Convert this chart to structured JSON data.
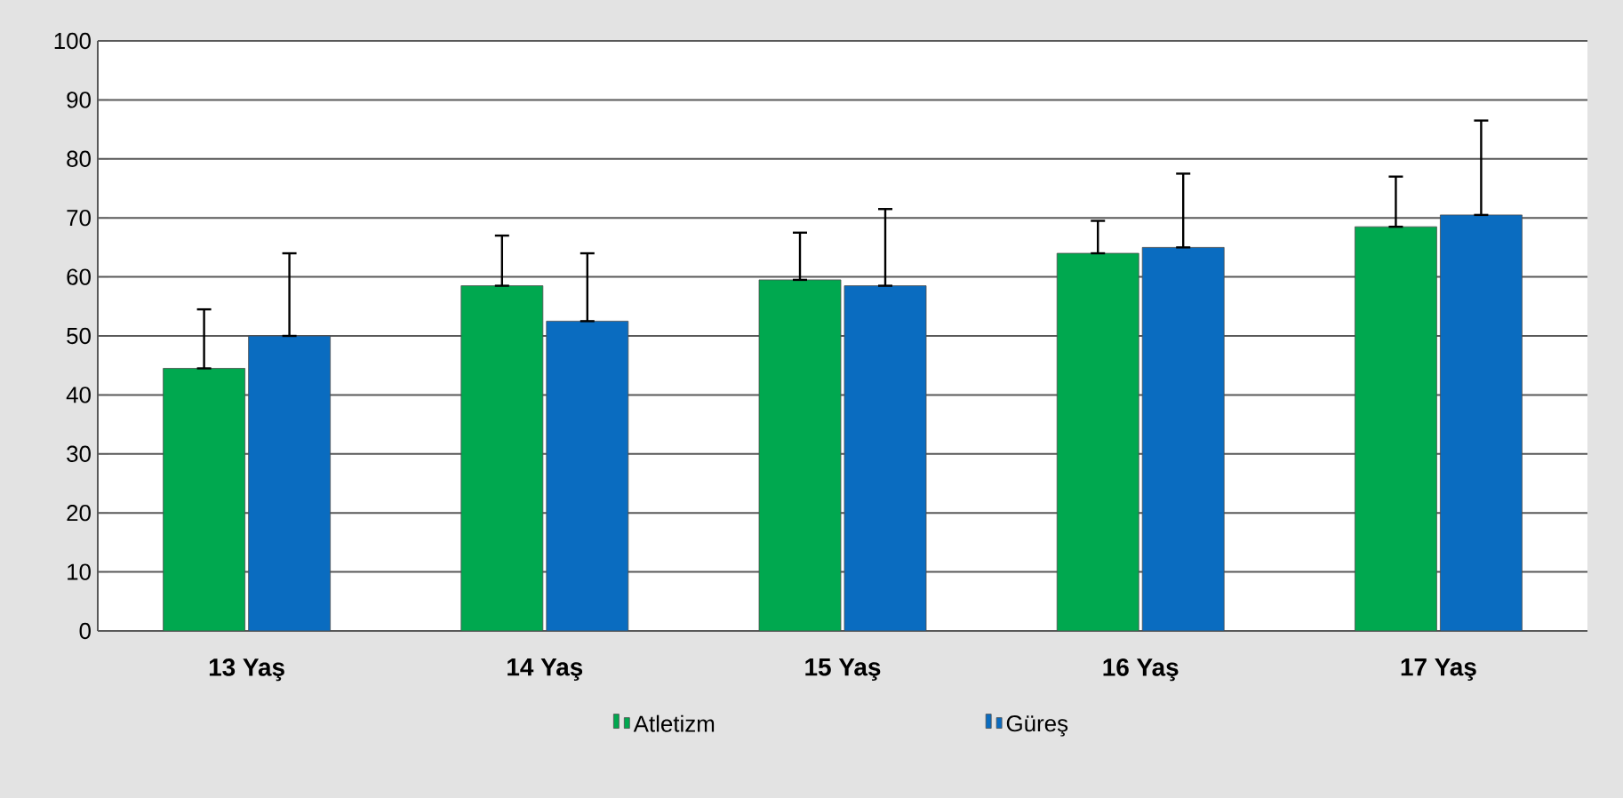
{
  "chart_data": {
    "type": "bar",
    "categories": [
      "13 Yaş",
      "14 Yaş",
      "15 Yaş",
      "16 Yaş",
      "17 Yaş"
    ],
    "series": [
      {
        "name": "Atletizm",
        "color": "#00a84f",
        "values": [
          44.5,
          58.5,
          59.5,
          64,
          68.5
        ],
        "errors": [
          [
            44.5,
            54.5
          ],
          [
            58.5,
            67
          ],
          [
            59.5,
            67.5
          ],
          [
            64,
            69.5
          ],
          [
            68.5,
            77
          ]
        ]
      },
      {
        "name": "Güreş",
        "color": "#0a6cc0",
        "values": [
          50,
          52.5,
          58.5,
          65,
          70.5
        ],
        "errors": [
          [
            50,
            64
          ],
          [
            52.5,
            64
          ],
          [
            58.5,
            71.5
          ],
          [
            65,
            77.5
          ],
          [
            70.5,
            86.5
          ]
        ]
      }
    ],
    "ylim": [
      0,
      100
    ],
    "yticks": [
      0,
      10,
      20,
      30,
      40,
      50,
      60,
      70,
      80,
      90,
      100
    ],
    "grid": "y",
    "legend": "bottom"
  }
}
